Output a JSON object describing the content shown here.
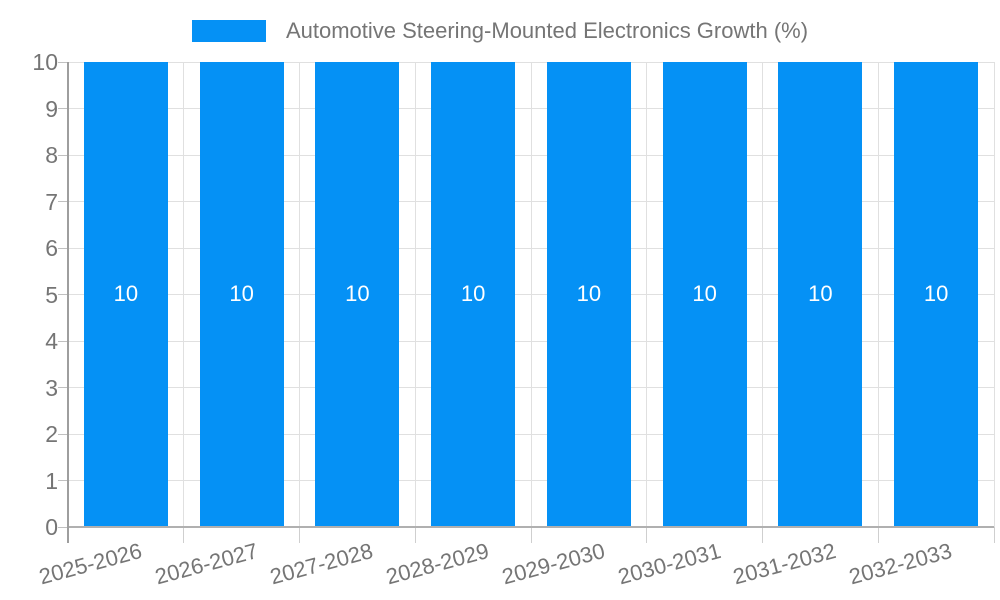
{
  "legend": {
    "label": "Automotive Steering-Mounted Electronics Growth (%)"
  },
  "chart_data": {
    "type": "bar",
    "title": "Automotive Steering-Mounted Electronics Growth (%)",
    "categories": [
      "2025-2026",
      "2026-2027",
      "2027-2028",
      "2028-2029",
      "2029-2030",
      "2030-2031",
      "2031-2032",
      "2032-2033"
    ],
    "values": [
      10,
      10,
      10,
      10,
      10,
      10,
      10,
      10
    ],
    "ylabel": "",
    "xlabel": "",
    "ylim": [
      0,
      10
    ],
    "yticks": [
      0,
      1,
      2,
      3,
      4,
      5,
      6,
      7,
      8,
      9,
      10
    ],
    "grid": true,
    "legend_position": "top-center",
    "colors": {
      "bar": "#0591f5",
      "axis_label": "#757575",
      "value_label": "#ffffff",
      "gridline": "#e0e0e0",
      "axis_line": "#9e9e9e"
    }
  }
}
